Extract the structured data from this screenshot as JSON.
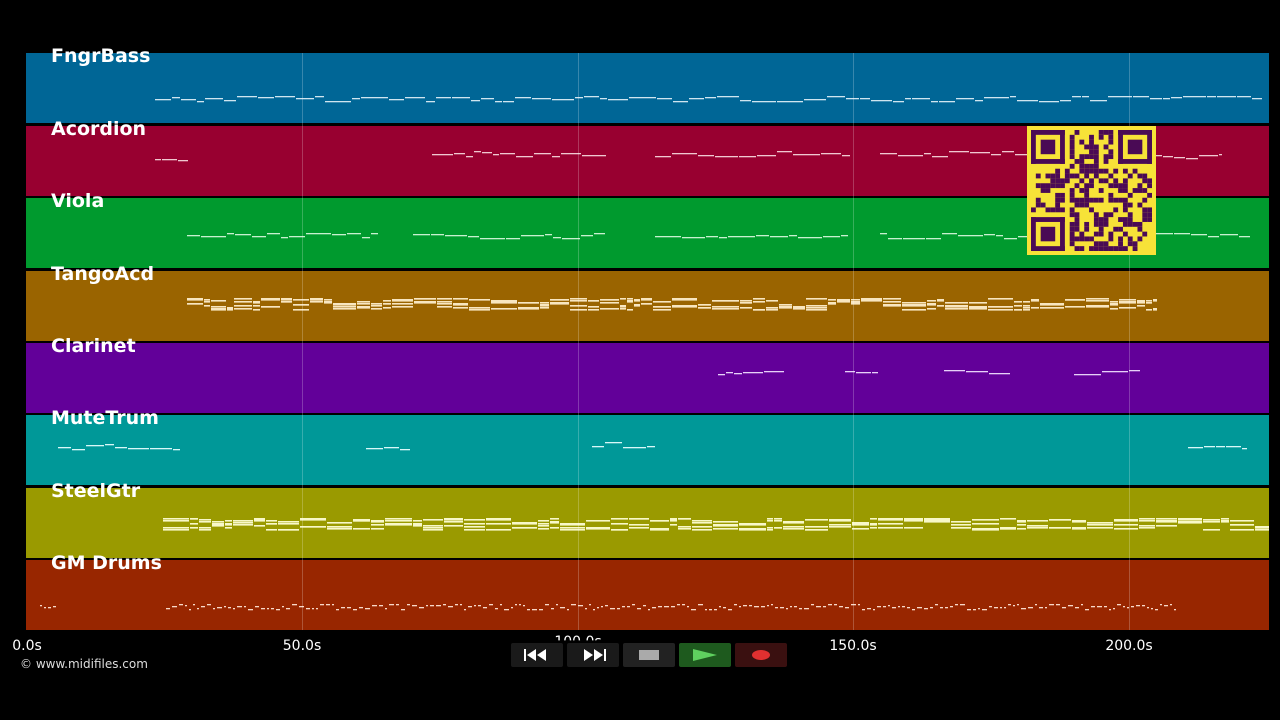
{
  "tracks": [
    {
      "name": "FngrBass",
      "color": "#006696",
      "note_color": "#cfe5f0"
    },
    {
      "name": "Acordion",
      "color": "#980030",
      "note_color": "#f0c8d0"
    },
    {
      "name": "Viola",
      "color": "#009a2e",
      "note_color": "#c8f0d0"
    },
    {
      "name": "TangoAcd",
      "color": "#9a6400",
      "note_color": "#f8e6c0"
    },
    {
      "name": "Clarinet",
      "color": "#620099",
      "note_color": "#e6d0f8"
    },
    {
      "name": "MuteTrum",
      "color": "#009898",
      "note_color": "#d8f8f8"
    },
    {
      "name": "SteelGtr",
      "color": "#9a9a00",
      "note_color": "#f8f8c8"
    },
    {
      "name": "GM Drums",
      "color": "#982600",
      "note_color": "#f8d8c8"
    }
  ],
  "timeline": {
    "ticks": [
      "0.0s",
      "50.0s",
      "100.0s",
      "150.0s",
      "200.0s"
    ],
    "tick_values": [
      0,
      50,
      100,
      150,
      200
    ],
    "max_seconds": 225
  },
  "copyright": "© www.midifiles.com",
  "transport": {
    "buttons": [
      "rewind",
      "fast-forward",
      "stop",
      "play",
      "record"
    ]
  },
  "colors": {
    "background": "#000000",
    "qr_background": "#f7e238",
    "qr_foreground": "#4a0a55"
  }
}
